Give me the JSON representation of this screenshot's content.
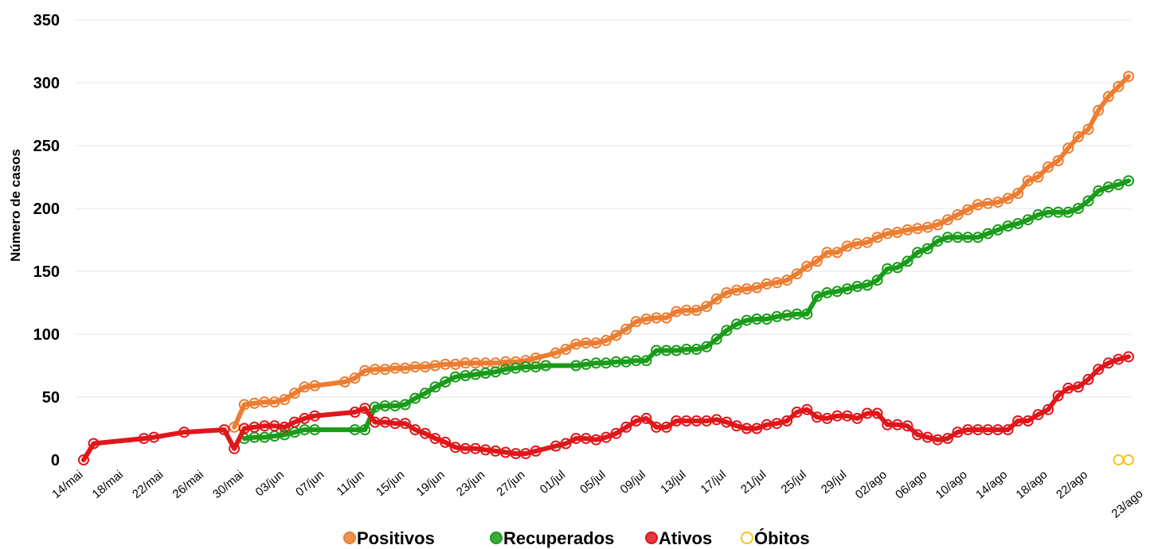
{
  "chart_data": {
    "type": "line",
    "title": "",
    "ylabel": "Número de casos",
    "xlabel": "",
    "ylim": [
      0,
      350
    ],
    "yticks": [
      "0",
      "50",
      "100",
      "150",
      "200",
      "250",
      "300",
      "350"
    ],
    "grid": "horizontal",
    "legend_position": "bottom",
    "x_tick_labels": [
      "14/mai",
      "18/mai",
      "22/mai",
      "26/mai",
      "30/mai",
      "03/jun",
      "07/jun",
      "11/jun",
      "15/jun",
      "19/jun",
      "23/jun",
      "27/jun",
      "01/jul",
      "05/jul",
      "09/jul",
      "13/jul",
      "17/jul",
      "21/jul",
      "25/jul",
      "29/jul",
      "02/ago",
      "06/ago",
      "10/ago",
      "14/ago",
      "18/ago",
      "22/ago",
      "23/ago"
    ],
    "series": [
      {
        "name": "Positivos",
        "color": "#ed7d31",
        "points": [
          [
            "29/mai",
            26
          ],
          [
            "30/mai",
            44
          ],
          [
            "31/mai",
            45
          ],
          [
            "01/jun",
            46
          ],
          [
            "02/jun",
            46
          ],
          [
            "03/jun",
            48
          ],
          [
            "04/jun",
            53
          ],
          [
            "05/jun",
            58
          ],
          [
            "06/jun",
            59
          ],
          [
            "09/jun",
            62
          ],
          [
            "10/jun",
            65
          ],
          [
            "11/jun",
            71
          ],
          [
            "12/jun",
            72
          ],
          [
            "13/jun",
            72
          ],
          [
            "14/jun",
            73
          ],
          [
            "15/jun",
            73
          ],
          [
            "16/jun",
            74
          ],
          [
            "17/jun",
            74
          ],
          [
            "18/jun",
            75
          ],
          [
            "19/jun",
            76
          ],
          [
            "20/jun",
            76
          ],
          [
            "21/jun",
            77
          ],
          [
            "22/jun",
            77
          ],
          [
            "23/jun",
            77
          ],
          [
            "24/jun",
            77
          ],
          [
            "25/jun",
            78
          ],
          [
            "26/jun",
            78
          ],
          [
            "27/jun",
            79
          ],
          [
            "28/jun",
            81
          ],
          [
            "30/jun",
            85
          ],
          [
            "01/jul",
            88
          ],
          [
            "02/jul",
            92
          ],
          [
            "03/jul",
            93
          ],
          [
            "04/jul",
            93
          ],
          [
            "05/jul",
            95
          ],
          [
            "06/jul",
            99
          ],
          [
            "07/jul",
            104
          ],
          [
            "08/jul",
            110
          ],
          [
            "09/jul",
            112
          ],
          [
            "10/jul",
            113
          ],
          [
            "11/jul",
            113
          ],
          [
            "12/jul",
            118
          ],
          [
            "13/jul",
            119
          ],
          [
            "14/jul",
            119
          ],
          [
            "15/jul",
            122
          ],
          [
            "16/jul",
            128
          ],
          [
            "17/jul",
            133
          ],
          [
            "18/jul",
            135
          ],
          [
            "19/jul",
            136
          ],
          [
            "20/jul",
            137
          ],
          [
            "21/jul",
            140
          ],
          [
            "22/jul",
            141
          ],
          [
            "23/jul",
            143
          ],
          [
            "24/jul",
            148
          ],
          [
            "25/jul",
            154
          ],
          [
            "26/jul",
            158
          ],
          [
            "27/jul",
            165
          ],
          [
            "28/jul",
            165
          ],
          [
            "29/jul",
            170
          ],
          [
            "30/jul",
            172
          ],
          [
            "31/jul",
            173
          ],
          [
            "01/ago",
            177
          ],
          [
            "02/ago",
            180
          ],
          [
            "03/ago",
            181
          ],
          [
            "04/ago",
            183
          ],
          [
            "05/ago",
            184
          ],
          [
            "06/ago",
            185
          ],
          [
            "07/ago",
            187
          ],
          [
            "08/ago",
            191
          ],
          [
            "09/ago",
            195
          ],
          [
            "10/ago",
            199
          ],
          [
            "11/ago",
            203
          ],
          [
            "12/ago",
            204
          ],
          [
            "13/ago",
            205
          ],
          [
            "14/ago",
            208
          ],
          [
            "15/ago",
            212
          ],
          [
            "16/ago",
            222
          ],
          [
            "17/ago",
            225
          ],
          [
            "18/ago",
            233
          ],
          [
            "19/ago",
            238
          ],
          [
            "20/ago",
            248
          ],
          [
            "21/ago",
            257
          ],
          [
            "22/ago",
            263
          ],
          [
            "23/ago",
            278
          ],
          [
            "24/ago",
            289
          ],
          [
            "25/ago",
            297
          ],
          [
            "26/ago",
            305
          ]
        ]
      },
      {
        "name": "Recuperados",
        "color": "#1a9c1a",
        "points": [
          [
            "30/mai",
            17
          ],
          [
            "31/mai",
            18
          ],
          [
            "01/jun",
            18
          ],
          [
            "02/jun",
            19
          ],
          [
            "03/jun",
            20
          ],
          [
            "04/jun",
            22
          ],
          [
            "05/jun",
            24
          ],
          [
            "06/jun",
            24
          ],
          [
            "10/jun",
            24
          ],
          [
            "11/jun",
            24
          ],
          [
            "12/jun",
            42
          ],
          [
            "13/jun",
            43
          ],
          [
            "14/jun",
            43
          ],
          [
            "15/jun",
            44
          ],
          [
            "16/jun",
            49
          ],
          [
            "17/jun",
            53
          ],
          [
            "18/jun",
            58
          ],
          [
            "19/jun",
            62
          ],
          [
            "20/jun",
            66
          ],
          [
            "21/jun",
            67
          ],
          [
            "22/jun",
            68
          ],
          [
            "23/jun",
            69
          ],
          [
            "24/jun",
            70
          ],
          [
            "25/jun",
            72
          ],
          [
            "26/jun",
            73
          ],
          [
            "27/jun",
            74
          ],
          [
            "28/jun",
            74
          ],
          [
            "29/jun",
            75
          ],
          [
            "02/jul",
            75
          ],
          [
            "03/jul",
            76
          ],
          [
            "04/jul",
            77
          ],
          [
            "05/jul",
            77
          ],
          [
            "06/jul",
            78
          ],
          [
            "07/jul",
            78
          ],
          [
            "08/jul",
            79
          ],
          [
            "09/jul",
            79
          ],
          [
            "10/jul",
            87
          ],
          [
            "11/jul",
            87
          ],
          [
            "12/jul",
            87
          ],
          [
            "13/jul",
            88
          ],
          [
            "14/jul",
            88
          ],
          [
            "15/jul",
            90
          ],
          [
            "16/jul",
            96
          ],
          [
            "17/jul",
            103
          ],
          [
            "18/jul",
            108
          ],
          [
            "19/jul",
            111
          ],
          [
            "20/jul",
            112
          ],
          [
            "21/jul",
            112
          ],
          [
            "22/jul",
            114
          ],
          [
            "23/jul",
            115
          ],
          [
            "24/jul",
            116
          ],
          [
            "25/jul",
            116
          ],
          [
            "26/jul",
            130
          ],
          [
            "27/jul",
            133
          ],
          [
            "28/jul",
            134
          ],
          [
            "29/jul",
            136
          ],
          [
            "30/jul",
            138
          ],
          [
            "31/jul",
            139
          ],
          [
            "01/ago",
            143
          ],
          [
            "02/ago",
            152
          ],
          [
            "03/ago",
            153
          ],
          [
            "04/ago",
            158
          ],
          [
            "05/ago",
            165
          ],
          [
            "06/ago",
            168
          ],
          [
            "07/ago",
            174
          ],
          [
            "08/ago",
            177
          ],
          [
            "09/ago",
            177
          ],
          [
            "10/ago",
            177
          ],
          [
            "11/ago",
            177
          ],
          [
            "12/ago",
            180
          ],
          [
            "13/ago",
            183
          ],
          [
            "14/ago",
            186
          ],
          [
            "15/ago",
            188
          ],
          [
            "16/ago",
            191
          ],
          [
            "17/ago",
            195
          ],
          [
            "18/ago",
            197
          ],
          [
            "19/ago",
            197
          ],
          [
            "20/ago",
            197
          ],
          [
            "21/ago",
            200
          ],
          [
            "22/ago",
            206
          ],
          [
            "23/ago",
            214
          ],
          [
            "24/ago",
            217
          ],
          [
            "25/ago",
            219
          ],
          [
            "26/ago",
            222
          ]
        ]
      },
      {
        "name": "Ativos",
        "color": "#e0161b",
        "points": [
          [
            "14/mai",
            0
          ],
          [
            "15/mai",
            13
          ],
          [
            "20/mai",
            17
          ],
          [
            "21/mai",
            18
          ],
          [
            "24/mai",
            22
          ],
          [
            "28/mai",
            24
          ],
          [
            "29/mai",
            9
          ],
          [
            "30/mai",
            25
          ],
          [
            "31/mai",
            26
          ],
          [
            "01/jun",
            27
          ],
          [
            "02/jun",
            27
          ],
          [
            "03/jun",
            26
          ],
          [
            "04/jun",
            30
          ],
          [
            "05/jun",
            33
          ],
          [
            "06/jun",
            35
          ],
          [
            "10/jun",
            38
          ],
          [
            "11/jun",
            41
          ],
          [
            "12/jun",
            30
          ],
          [
            "13/jun",
            30
          ],
          [
            "14/jun",
            29
          ],
          [
            "15/jun",
            29
          ],
          [
            "16/jun",
            24
          ],
          [
            "17/jun",
            21
          ],
          [
            "18/jun",
            17
          ],
          [
            "19/jun",
            14
          ],
          [
            "20/jun",
            10
          ],
          [
            "21/jun",
            9
          ],
          [
            "22/jun",
            9
          ],
          [
            "23/jun",
            8
          ],
          [
            "24/jun",
            7
          ],
          [
            "25/jun",
            6
          ],
          [
            "26/jun",
            5
          ],
          [
            "27/jun",
            5
          ],
          [
            "28/jun",
            7
          ],
          [
            "30/jun",
            11
          ],
          [
            "01/jul",
            13
          ],
          [
            "02/jul",
            17
          ],
          [
            "03/jul",
            17
          ],
          [
            "04/jul",
            16
          ],
          [
            "05/jul",
            18
          ],
          [
            "06/jul",
            21
          ],
          [
            "07/jul",
            26
          ],
          [
            "08/jul",
            31
          ],
          [
            "09/jul",
            33
          ],
          [
            "10/jul",
            26
          ],
          [
            "11/jul",
            26
          ],
          [
            "12/jul",
            31
          ],
          [
            "13/jul",
            31
          ],
          [
            "14/jul",
            31
          ],
          [
            "15/jul",
            31
          ],
          [
            "16/jul",
            32
          ],
          [
            "17/jul",
            30
          ],
          [
            "18/jul",
            27
          ],
          [
            "19/jul",
            25
          ],
          [
            "20/jul",
            25
          ],
          [
            "21/jul",
            28
          ],
          [
            "22/jul",
            29
          ],
          [
            "23/jul",
            31
          ],
          [
            "24/jul",
            38
          ],
          [
            "25/jul",
            40
          ],
          [
            "26/jul",
            34
          ],
          [
            "27/jul",
            33
          ],
          [
            "28/jul",
            35
          ],
          [
            "29/jul",
            35
          ],
          [
            "30/jul",
            33
          ],
          [
            "31/jul",
            37
          ],
          [
            "01/ago",
            37
          ],
          [
            "02/ago",
            28
          ],
          [
            "03/ago",
            28
          ],
          [
            "04/ago",
            27
          ],
          [
            "05/ago",
            20
          ],
          [
            "06/ago",
            18
          ],
          [
            "07/ago",
            16
          ],
          [
            "08/ago",
            17
          ],
          [
            "09/ago",
            22
          ],
          [
            "10/ago",
            24
          ],
          [
            "11/ago",
            24
          ],
          [
            "12/ago",
            24
          ],
          [
            "13/ago",
            24
          ],
          [
            "14/ago",
            24
          ],
          [
            "15/ago",
            31
          ],
          [
            "16/ago",
            31
          ],
          [
            "17/ago",
            36
          ],
          [
            "18/ago",
            40
          ],
          [
            "19/ago",
            51
          ],
          [
            "20/ago",
            57
          ],
          [
            "21/ago",
            58
          ],
          [
            "22/ago",
            64
          ],
          [
            "23/ago",
            72
          ],
          [
            "24/ago",
            77
          ],
          [
            "25/ago",
            80
          ],
          [
            "26/ago",
            82
          ]
        ]
      },
      {
        "name": "Óbitos",
        "color": "#f2c521",
        "points": [
          [
            "25/ago",
            0
          ],
          [
            "26/ago",
            0
          ]
        ]
      }
    ]
  }
}
